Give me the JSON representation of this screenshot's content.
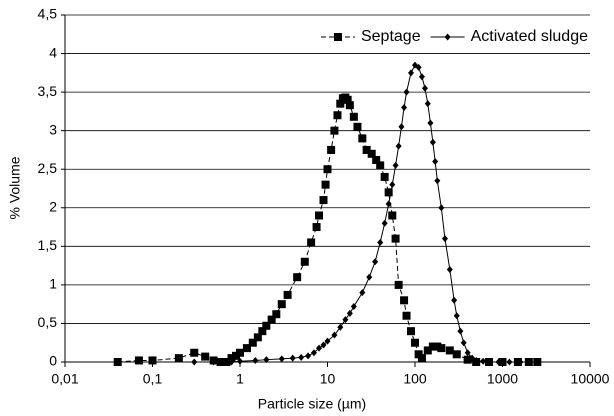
{
  "chart_data": {
    "type": "line",
    "x_label": "Particle size (µm)",
    "y_label": "% Volume",
    "xscale": "log",
    "xlim": [
      0.01,
      10000
    ],
    "ylim": [
      0,
      4.5
    ],
    "xticks": [
      {
        "value": 0.01,
        "label": "0,01"
      },
      {
        "value": 0.1,
        "label": "0,1"
      },
      1,
      10,
      100,
      1000,
      10000
    ],
    "yticks": [
      0,
      {
        "value": 0.5,
        "label": "0,5"
      },
      1,
      {
        "value": 1.5,
        "label": "1,5"
      },
      2,
      {
        "value": 2.5,
        "label": "2,5"
      },
      3,
      {
        "value": 3.5,
        "label": "3,5"
      },
      4,
      {
        "value": 4.5,
        "label": "4,5"
      }
    ],
    "grid": true,
    "legend": "top-right",
    "series": [
      {
        "name": "Septage",
        "color": "#000000",
        "line_style": "dashed",
        "marker": "square",
        "x": [
          0.04,
          0.07,
          0.1,
          0.2,
          0.3,
          0.4,
          0.5,
          0.6,
          0.7,
          0.8,
          0.9,
          1.0,
          1.2,
          1.4,
          1.6,
          1.8,
          2.0,
          2.3,
          2.6,
          3.0,
          3.5,
          4.5,
          5.5,
          6.5,
          7.5,
          8,
          9,
          9.5,
          10,
          11,
          12,
          13,
          14,
          15,
          16,
          17,
          18,
          20,
          22,
          25,
          28,
          32,
          36,
          40,
          45,
          50,
          55,
          60,
          65,
          75,
          80,
          90,
          100,
          110,
          120,
          140,
          160,
          180,
          200,
          250,
          300,
          400,
          500,
          700,
          1000,
          1500,
          2000,
          2500
        ],
        "values": [
          0,
          0.02,
          0.02,
          0.05,
          0.12,
          0.07,
          0.02,
          0,
          0,
          0.05,
          0.08,
          0.12,
          0.18,
          0.25,
          0.32,
          0.4,
          0.47,
          0.55,
          0.62,
          0.75,
          0.87,
          1.1,
          1.3,
          1.55,
          1.75,
          1.9,
          2.1,
          2.3,
          2.5,
          2.75,
          3.0,
          3.2,
          3.35,
          3.42,
          3.43,
          3.4,
          3.33,
          3.18,
          3.05,
          2.9,
          2.75,
          2.7,
          2.62,
          2.55,
          2.4,
          2.2,
          1.9,
          1.6,
          1.0,
          0.8,
          0.6,
          0.4,
          0.25,
          0.1,
          0.05,
          0.15,
          0.2,
          0.2,
          0.18,
          0.15,
          0.1,
          0.03,
          0,
          0,
          0,
          0,
          0,
          0
        ]
      },
      {
        "name": "Activated sludge",
        "color": "#000000",
        "line_style": "solid",
        "marker": "diamond",
        "x": [
          0.3,
          0.5,
          0.8,
          1,
          1.5,
          2,
          3,
          4,
          5,
          6,
          7,
          8,
          9,
          10,
          12,
          14,
          16,
          18,
          20,
          25,
          30,
          35,
          40,
          45,
          50,
          55,
          60,
          65,
          70,
          75,
          80,
          90,
          100,
          110,
          120,
          130,
          140,
          150,
          160,
          170,
          180,
          200,
          220,
          250,
          280,
          300,
          330,
          360,
          400,
          450,
          500,
          600,
          700,
          900,
          1200,
          1600,
          2000,
          2500
        ],
        "values": [
          0,
          0,
          0,
          0.01,
          0.02,
          0.03,
          0.04,
          0.05,
          0.06,
          0.08,
          0.12,
          0.18,
          0.22,
          0.27,
          0.35,
          0.45,
          0.55,
          0.63,
          0.72,
          0.9,
          1.1,
          1.3,
          1.55,
          1.8,
          2.05,
          2.3,
          2.55,
          2.8,
          3.05,
          3.3,
          3.5,
          3.75,
          3.85,
          3.82,
          3.7,
          3.55,
          3.35,
          3.1,
          2.85,
          2.6,
          2.35,
          2.0,
          1.6,
          1.2,
          0.8,
          0.6,
          0.4,
          0.25,
          0.12,
          0.05,
          0.02,
          0.01,
          0,
          0,
          0,
          0,
          0,
          0
        ]
      }
    ]
  }
}
